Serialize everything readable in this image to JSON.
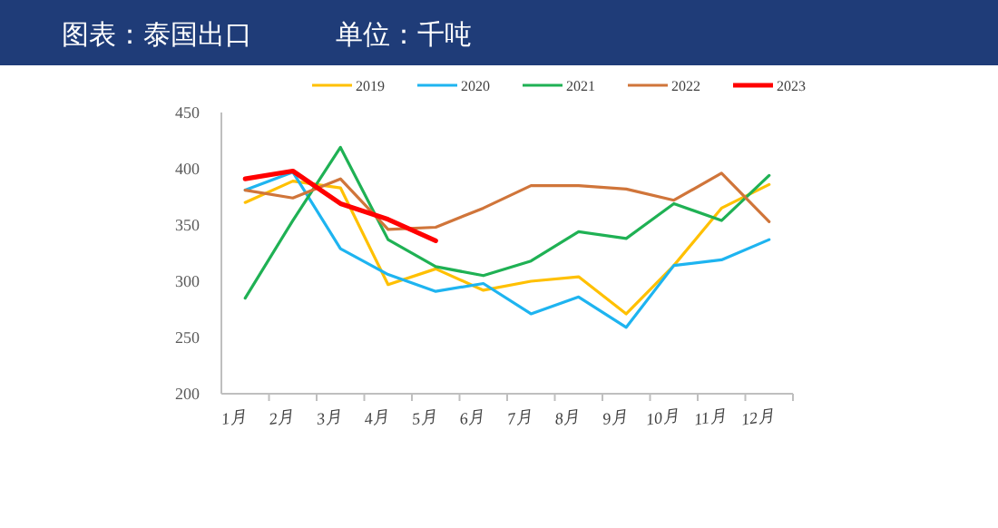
{
  "chart_data": {
    "type": "line",
    "title": "图表：泰国出口",
    "subtitle": "单位：千吨",
    "categories": [
      "1月",
      "2月",
      "3月",
      "4月",
      "5月",
      "6月",
      "7月",
      "8月",
      "9月",
      "10月",
      "11月",
      "12月"
    ],
    "ylim": [
      200,
      450
    ],
    "yticks": [
      200,
      250,
      300,
      350,
      400,
      450
    ],
    "grid": false,
    "legend": "top",
    "marker": "none",
    "line_style": "solid",
    "series": [
      {
        "name": "2019",
        "color": "#ffc000",
        "values": [
          370,
          389,
          383,
          297,
          311,
          292,
          300,
          304,
          271,
          314,
          365,
          386
        ]
      },
      {
        "name": "2020",
        "color": "#1eb4f0",
        "values": [
          381,
          397,
          329,
          306,
          291,
          298,
          271,
          286,
          259,
          314,
          319,
          337
        ]
      },
      {
        "name": "2021",
        "color": "#1fb154",
        "values": [
          285,
          354,
          419,
          337,
          313,
          305,
          318,
          344,
          338,
          369,
          354,
          394
        ]
      },
      {
        "name": "2022",
        "color": "#d0753a",
        "values": [
          381,
          374,
          391,
          346,
          348,
          365,
          385,
          385,
          382,
          372,
          396,
          353
        ]
      },
      {
        "name": "2023",
        "color": "#ff0000",
        "values": [
          391,
          398,
          369,
          355,
          336,
          null,
          null,
          null,
          null,
          null,
          null,
          null
        ]
      }
    ]
  }
}
